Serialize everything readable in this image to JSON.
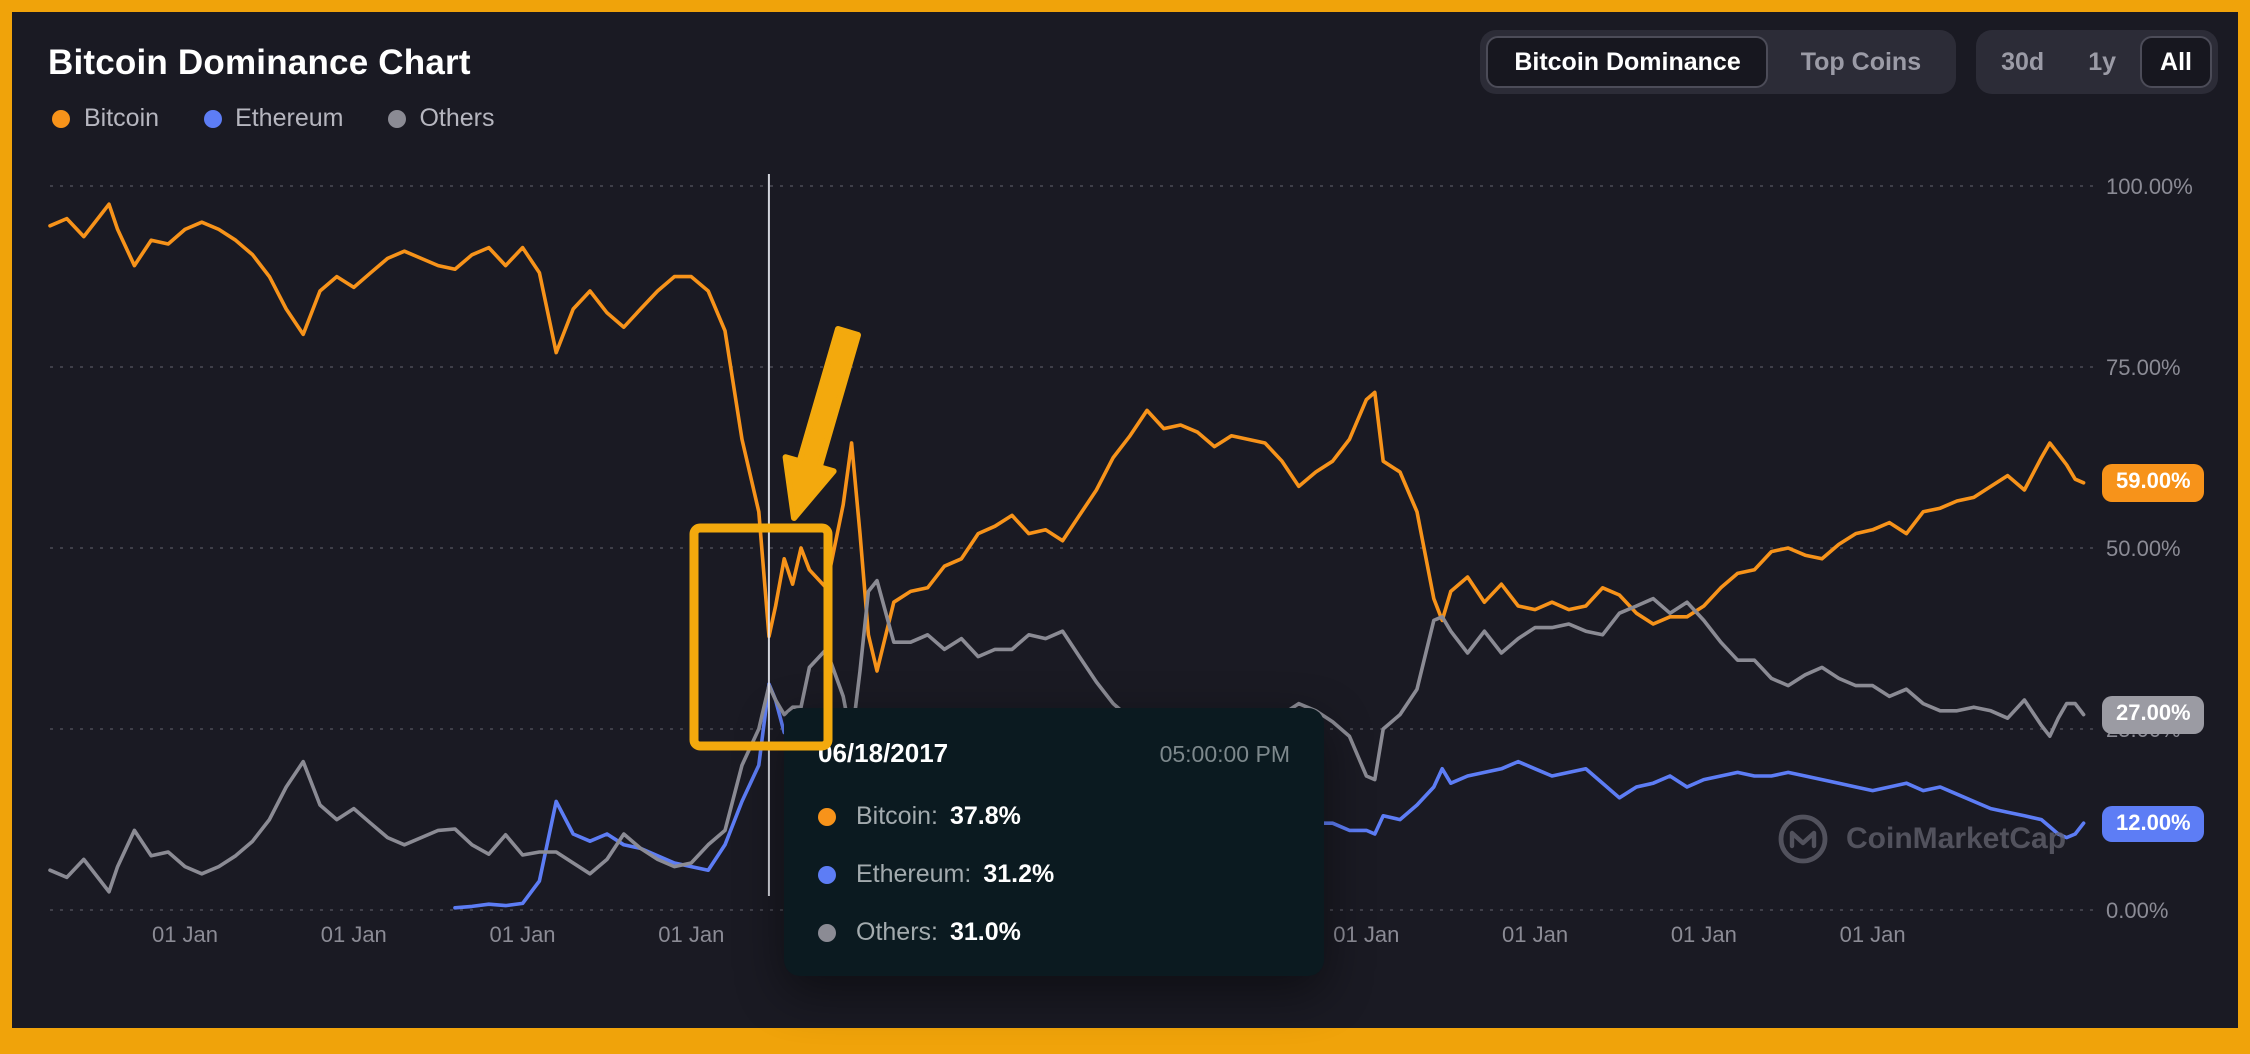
{
  "header": {
    "title": "Bitcoin Dominance Chart"
  },
  "controls": {
    "view_toggle": [
      {
        "label": "Bitcoin Dominance",
        "active": true
      },
      {
        "label": "Top Coins",
        "active": false
      }
    ],
    "range_toggle": [
      {
        "label": "30d",
        "active": false
      },
      {
        "label": "1y",
        "active": false
      },
      {
        "label": "All",
        "active": true
      }
    ]
  },
  "legend": [
    {
      "label": "Bitcoin",
      "color": "#f7931a"
    },
    {
      "label": "Ethereum",
      "color": "#5d7df5"
    },
    {
      "label": "Others",
      "color": "#8b8b94"
    }
  ],
  "tooltip": {
    "date": "06/18/2017",
    "time": "05:00:00 PM",
    "rows": [
      {
        "label": "Bitcoin:",
        "value": "37.8%",
        "color": "#f7931a"
      },
      {
        "label": "Ethereum:",
        "value": "31.2%",
        "color": "#5d7df5"
      },
      {
        "label": "Others:",
        "value": "31.0%",
        "color": "#8b8b94"
      }
    ]
  },
  "watermark": {
    "text": "CoinMarketCap"
  },
  "colors": {
    "frame": "#f0a30a",
    "background": "#1a1a23",
    "grid": "#3f3f49",
    "crosshair": "#e7e9f0",
    "tooltip_bg": "#0b1a20",
    "annotation": "#f3a90d",
    "control_bg": "#2c2c37",
    "control_active_bg": "#17171f",
    "text_primary": "#ffffff",
    "text_secondary": "#9b9ba6",
    "axis_text": "#8b8b95"
  },
  "chart_data": {
    "type": "line",
    "title": "Bitcoin Dominance Chart",
    "xlabel": "",
    "ylabel": "Dominance (%)",
    "ylim": [
      0,
      100
    ],
    "grid": "horizontal-dotted",
    "legend_position": "top-left",
    "y_axis_side": "right",
    "y_ticks": [
      {
        "value": 100,
        "label": "100.00%"
      },
      {
        "value": 75,
        "label": "75.00%"
      },
      {
        "value": 50,
        "label": "50.00%"
      },
      {
        "value": 25,
        "label": "25.00%"
      },
      {
        "value": 0,
        "label": "0.00%"
      }
    ],
    "x_domain": [
      2013.2,
      2025.3
    ],
    "x_ticks": [
      {
        "year": 2014,
        "label": "01 Jan"
      },
      {
        "year": 2015,
        "label": "01 Jan"
      },
      {
        "year": 2016,
        "label": "01 Jan"
      },
      {
        "year": 2017,
        "label": "01 Jan"
      },
      {
        "year": 2018,
        "label": "01 Jan"
      },
      {
        "year": 2019,
        "label": "01 Jan"
      },
      {
        "year": 2020,
        "label": "01 Jan"
      },
      {
        "year": 2021,
        "label": "01 Jan"
      },
      {
        "year": 2022,
        "label": "01 Jan"
      },
      {
        "year": 2023,
        "label": "01 Jan"
      },
      {
        "year": 2024,
        "label": "01 Jan"
      }
    ],
    "crosshair_x": 2017.46,
    "x": [
      2013.2,
      2013.3,
      2013.4,
      2013.5,
      2013.55,
      2013.6,
      2013.7,
      2013.8,
      2013.9,
      2014.0,
      2014.1,
      2014.2,
      2014.3,
      2014.4,
      2014.5,
      2014.6,
      2014.7,
      2014.8,
      2014.9,
      2015.0,
      2015.1,
      2015.2,
      2015.3,
      2015.4,
      2015.5,
      2015.6,
      2015.7,
      2015.8,
      2015.9,
      2016.0,
      2016.1,
      2016.2,
      2016.3,
      2016.4,
      2016.5,
      2016.6,
      2016.7,
      2016.8,
      2016.9,
      2017.0,
      2017.1,
      2017.2,
      2017.3,
      2017.4,
      2017.46,
      2017.5,
      2017.55,
      2017.6,
      2017.65,
      2017.7,
      2017.8,
      2017.9,
      2017.95,
      2018.0,
      2018.05,
      2018.1,
      2018.2,
      2018.3,
      2018.4,
      2018.5,
      2018.6,
      2018.7,
      2018.8,
      2018.9,
      2019.0,
      2019.1,
      2019.2,
      2019.3,
      2019.4,
      2019.5,
      2019.6,
      2019.7,
      2019.8,
      2019.9,
      2020.0,
      2020.1,
      2020.2,
      2020.3,
      2020.4,
      2020.5,
      2020.6,
      2020.7,
      2020.8,
      2020.9,
      2021.0,
      2021.05,
      2021.1,
      2021.2,
      2021.3,
      2021.4,
      2021.45,
      2021.5,
      2021.6,
      2021.7,
      2021.8,
      2021.9,
      2022.0,
      2022.1,
      2022.2,
      2022.3,
      2022.4,
      2022.5,
      2022.6,
      2022.7,
      2022.8,
      2022.9,
      2023.0,
      2023.1,
      2023.2,
      2023.3,
      2023.4,
      2023.5,
      2023.6,
      2023.7,
      2023.8,
      2023.9,
      2024.0,
      2024.1,
      2024.2,
      2024.3,
      2024.4,
      2024.5,
      2024.6,
      2024.7,
      2024.8,
      2024.9,
      2025.0,
      2025.05,
      2025.1,
      2025.15,
      2025.2,
      2025.25
    ],
    "series": [
      {
        "name": "Bitcoin",
        "color": "#f7931a",
        "badge": "59.00%",
        "badge_color": "#f7931a",
        "values": [
          94.5,
          95.5,
          93,
          96,
          97.5,
          94,
          89,
          92.5,
          92,
          94,
          95,
          94,
          92.5,
          90.5,
          87.5,
          83,
          79.5,
          85.5,
          87.5,
          86,
          88,
          90,
          91,
          90,
          89,
          88.5,
          90.5,
          91.5,
          89,
          91.5,
          88,
          77,
          83,
          85.5,
          82.5,
          80.5,
          83,
          85.5,
          87.5,
          87.5,
          85.5,
          80,
          65,
          55,
          37.8,
          42,
          48.5,
          45,
          50,
          47,
          44.5,
          56,
          64.5,
          52,
          38,
          33,
          42.5,
          44,
          44.5,
          47.5,
          48.5,
          52,
          53,
          54.5,
          52,
          52.5,
          51,
          54.5,
          58,
          62.5,
          65.5,
          69,
          66.5,
          67,
          66,
          64,
          65.5,
          65,
          64.5,
          62,
          58.5,
          60.5,
          62,
          65,
          70.5,
          71.5,
          62,
          60.5,
          55,
          43,
          40,
          44,
          46,
          42.5,
          45,
          42,
          41.5,
          42.5,
          41.5,
          42,
          44.5,
          43.5,
          41,
          39.5,
          40.5,
          40.5,
          42,
          44.5,
          46.5,
          47,
          49.5,
          50,
          49,
          48.5,
          50.5,
          52,
          52.5,
          53.5,
          52,
          55,
          55.5,
          56.5,
          57,
          58.5,
          60,
          58,
          62.5,
          64.5,
          63,
          61.5,
          59.5,
          59
        ]
      },
      {
        "name": "Ethereum",
        "color": "#5d7df5",
        "badge": "12.00%",
        "badge_color": "#5d7df5",
        "values": [
          null,
          null,
          null,
          null,
          null,
          null,
          null,
          null,
          null,
          null,
          null,
          null,
          null,
          null,
          null,
          null,
          null,
          null,
          null,
          null,
          null,
          null,
          null,
          null,
          null,
          0.3,
          0.5,
          0.8,
          0.6,
          0.9,
          4,
          15,
          10.5,
          9.5,
          10.5,
          9,
          8.5,
          7.5,
          6.5,
          6,
          5.5,
          9,
          15,
          20,
          31.2,
          29,
          24.5,
          27,
          22,
          19.5,
          19.5,
          14.5,
          12,
          15,
          18,
          21.5,
          20.5,
          19,
          17.5,
          16.5,
          14,
          13,
          11,
          9.5,
          10,
          10,
          10.5,
          10.5,
          10.5,
          9,
          8,
          7.5,
          8,
          8.5,
          8,
          9.5,
          9.5,
          10,
          10,
          11,
          13,
          12,
          12,
          11,
          11,
          10.5,
          13,
          12.5,
          14.5,
          17,
          19.5,
          17.5,
          18.5,
          19,
          19.5,
          20.5,
          19.5,
          18.5,
          19,
          19.5,
          17.5,
          15.5,
          17,
          17.5,
          18.5,
          17,
          18,
          18.5,
          19,
          18.5,
          18.5,
          19,
          18.5,
          18,
          17.5,
          17,
          16.5,
          17,
          17.5,
          16.5,
          17,
          16,
          15,
          14,
          13.5,
          13,
          12.5,
          11.5,
          10.5,
          10,
          10.5,
          12
        ]
      },
      {
        "name": "Others",
        "color": "#8b8b94",
        "badge": "27.00%",
        "badge_color": "#9b9ba3",
        "values": [
          5.5,
          4.5,
          7,
          4,
          2.5,
          6,
          11,
          7.5,
          8,
          6,
          5,
          6,
          7.5,
          9.5,
          12.5,
          17,
          20.5,
          14.5,
          12.5,
          14,
          12,
          10,
          9,
          10,
          11,
          11.2,
          9,
          7.7,
          10.4,
          7.6,
          8,
          8,
          6.5,
          5,
          7,
          10.5,
          8.5,
          7,
          6,
          6.5,
          9,
          11,
          20,
          25,
          31,
          29,
          27,
          28,
          28,
          33.5,
          36,
          29.5,
          23.5,
          33,
          44,
          45.5,
          37,
          37,
          38,
          36,
          37.5,
          35,
          36,
          36,
          38,
          37.5,
          38.5,
          35,
          31.5,
          28.5,
          26.5,
          23.5,
          25.5,
          24.5,
          26,
          26.5,
          25,
          25,
          25.5,
          27,
          28.5,
          27.5,
          26,
          24,
          18.5,
          18,
          25,
          27,
          30.5,
          40,
          40.5,
          38.5,
          35.5,
          38.5,
          35.5,
          37.5,
          39,
          39,
          39.5,
          38.5,
          38,
          41,
          42,
          43,
          41,
          42.5,
          40,
          37,
          34.5,
          34.5,
          32,
          31,
          32.5,
          33.5,
          32,
          31,
          31,
          29.5,
          30.5,
          28.5,
          27.5,
          27.5,
          28,
          27.5,
          26.5,
          29,
          25.5,
          24,
          26.5,
          28.5,
          28.5,
          27
        ]
      }
    ]
  }
}
